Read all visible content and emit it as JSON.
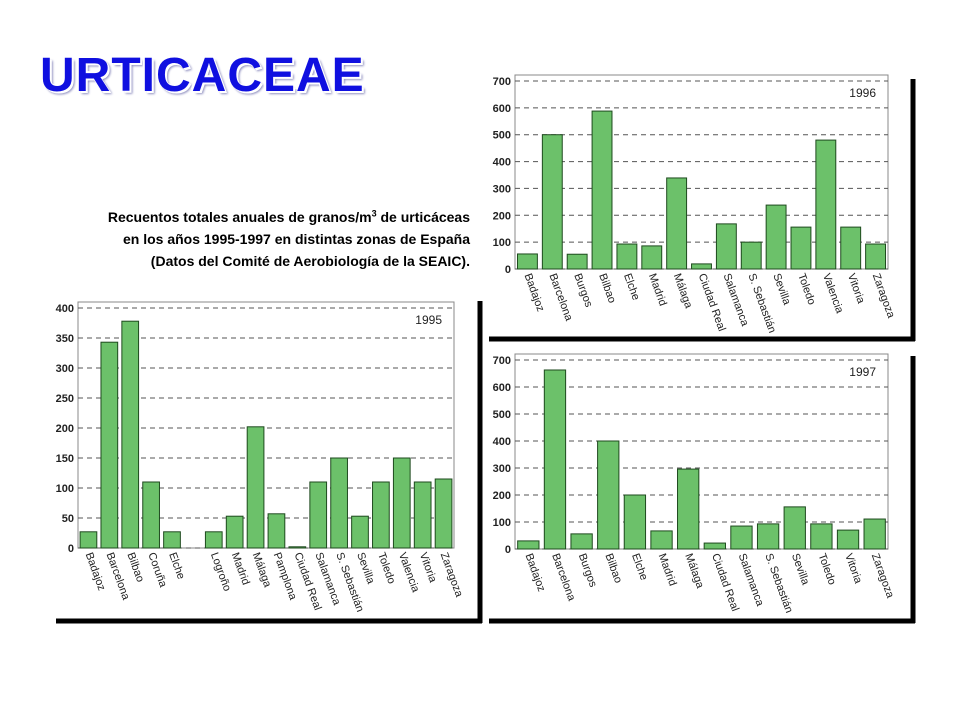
{
  "title": "URTICACEAE",
  "caption": {
    "before": "Recuentos totales anuales de granos/m",
    "sup": "3",
    "after": " de urticáceas en los años 1995-1997 en distintas zonas de España (Datos del Comité de Aerobiología de la SEAIC)."
  },
  "chart_data": [
    {
      "type": "bar",
      "annotation": "1996",
      "color": "#6cc16a",
      "categories": [
        "Badajoz",
        "Barcelona",
        "Burgos",
        "Bilbao",
        "Elche",
        "Madrid",
        "Málaga",
        "Ciudad Real",
        "Salamanca",
        "S. Sebastián",
        "Sevilla",
        "Toledo",
        "Valencia",
        "Vitoria",
        "Zaragoza"
      ],
      "values": [
        56,
        500,
        55,
        588,
        93,
        86,
        339,
        19,
        168,
        100,
        238,
        156,
        480,
        156,
        93
      ],
      "ylim": [
        0,
        700
      ],
      "yticks": [
        0,
        100,
        200,
        300,
        400,
        500,
        600,
        700
      ],
      "grid": true
    },
    {
      "type": "bar",
      "annotation": "1995",
      "color": "#6cc16a",
      "categories": [
        "Badajoz",
        "Barcelona",
        "Bilbao",
        "Coruña",
        "Elche",
        null,
        "Logroño",
        "Madrid",
        "Málaga",
        "Pamplona",
        "Ciudad Real",
        "Salamanca",
        "S. Sebastián",
        "Sevilla",
        "Toledo",
        "Valencia",
        "Vitoria",
        "Zaragoza"
      ],
      "values": [
        27,
        343,
        378,
        110,
        27,
        null,
        27,
        53,
        202,
        57,
        2,
        110,
        150,
        53,
        110,
        150,
        110,
        115
      ],
      "ylim": [
        0,
        400
      ],
      "yticks": [
        0,
        50,
        100,
        150,
        200,
        250,
        300,
        350,
        400
      ],
      "grid": true
    },
    {
      "type": "bar",
      "annotation": "1997",
      "color": "#6cc16a",
      "categories": [
        "Badajoz",
        "Barcelona",
        "Burgos",
        "Bilbao",
        "Elche",
        "Madrid",
        "Málaga",
        "Ciudad Real",
        "Salamanca",
        "S. Sebastián",
        "Sevilla",
        "Toledo",
        "Vitoria",
        "Zaragoza"
      ],
      "values": [
        30,
        663,
        56,
        400,
        200,
        67,
        296,
        22,
        85,
        93,
        156,
        93,
        70,
        111
      ],
      "ylim": [
        0,
        700
      ],
      "yticks": [
        0,
        100,
        200,
        300,
        400,
        500,
        600,
        700
      ],
      "grid": true
    }
  ]
}
